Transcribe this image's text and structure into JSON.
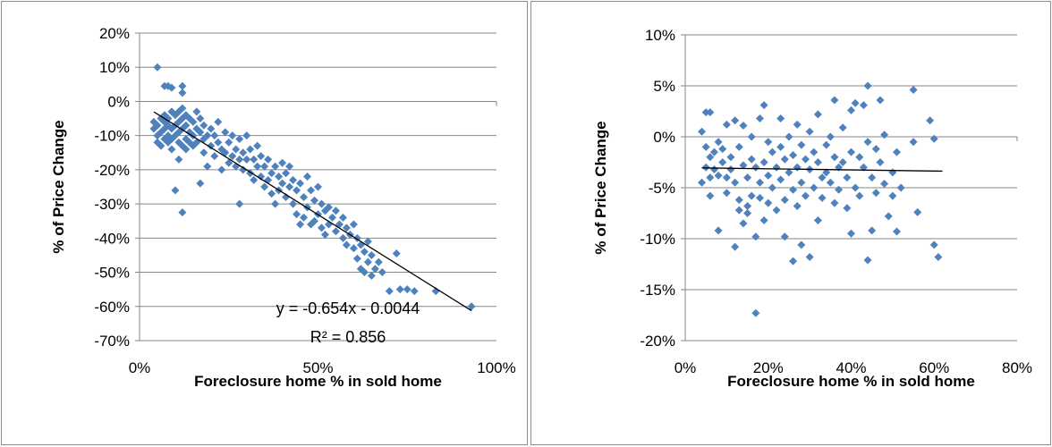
{
  "chart_data": [
    {
      "type": "scatter",
      "title": "",
      "xlabel": "Foreclosure home % in sold home",
      "ylabel": "% of Price Change",
      "xlim": [
        0,
        1.0
      ],
      "ylim": [
        -0.7,
        0.2
      ],
      "x_ticks": [
        0,
        0.5,
        1.0
      ],
      "x_tick_labels": [
        "0%",
        "50%",
        "100%"
      ],
      "y_ticks": [
        0.2,
        0.1,
        0,
        -0.1,
        -0.2,
        -0.3,
        -0.4,
        -0.5,
        -0.6,
        -0.7
      ],
      "y_tick_labels": [
        "20%",
        "10%",
        "0%",
        "-10%",
        "-20%",
        "-30%",
        "-40%",
        "-50%",
        "-60%",
        "-70%"
      ],
      "grid": "horizontal",
      "marker_color": "#4f81bd",
      "trendline": {
        "slope": -0.654,
        "intercept": -0.0044,
        "x_range": [
          0.04,
          0.93
        ],
        "equation_label": "y = -0.654x - 0.0044",
        "r2_label": "R² = 0.856"
      },
      "points": [
        [
          0.05,
          0.1
        ],
        [
          0.07,
          0.045
        ],
        [
          0.08,
          0.045
        ],
        [
          0.09,
          0.04
        ],
        [
          0.12,
          0.045
        ],
        [
          0.12,
          0.025
        ],
        [
          0.04,
          -0.06
        ],
        [
          0.04,
          -0.08
        ],
        [
          0.05,
          -0.07
        ],
        [
          0.05,
          -0.1
        ],
        [
          0.05,
          -0.12
        ],
        [
          0.06,
          -0.05
        ],
        [
          0.06,
          -0.09
        ],
        [
          0.06,
          -0.13
        ],
        [
          0.07,
          -0.06
        ],
        [
          0.07,
          -0.08
        ],
        [
          0.07,
          -0.11
        ],
        [
          0.07,
          -0.04
        ],
        [
          0.08,
          -0.07
        ],
        [
          0.08,
          -0.1
        ],
        [
          0.08,
          -0.12
        ],
        [
          0.08,
          -0.05
        ],
        [
          0.09,
          -0.03
        ],
        [
          0.09,
          -0.08
        ],
        [
          0.09,
          -0.11
        ],
        [
          0.09,
          -0.14
        ],
        [
          0.1,
          -0.04
        ],
        [
          0.1,
          -0.07
        ],
        [
          0.1,
          -0.1
        ],
        [
          0.1,
          -0.26
        ],
        [
          0.11,
          -0.03
        ],
        [
          0.11,
          -0.06
        ],
        [
          0.11,
          -0.09
        ],
        [
          0.11,
          -0.12
        ],
        [
          0.11,
          -0.17
        ],
        [
          0.12,
          -0.02
        ],
        [
          0.12,
          -0.05
        ],
        [
          0.12,
          -0.08
        ],
        [
          0.12,
          -0.13
        ],
        [
          0.12,
          -0.325
        ],
        [
          0.13,
          -0.04
        ],
        [
          0.13,
          -0.07
        ],
        [
          0.13,
          -0.11
        ],
        [
          0.13,
          -0.14
        ],
        [
          0.14,
          -0.05
        ],
        [
          0.14,
          -0.09
        ],
        [
          0.14,
          -0.12
        ],
        [
          0.15,
          -0.06
        ],
        [
          0.15,
          -0.1
        ],
        [
          0.15,
          -0.13
        ],
        [
          0.16,
          -0.03
        ],
        [
          0.16,
          -0.08
        ],
        [
          0.16,
          -0.12
        ],
        [
          0.17,
          -0.05
        ],
        [
          0.17,
          -0.09
        ],
        [
          0.17,
          -0.24
        ],
        [
          0.18,
          -0.07
        ],
        [
          0.18,
          -0.11
        ],
        [
          0.18,
          -0.15
        ],
        [
          0.19,
          -0.1
        ],
        [
          0.19,
          -0.19
        ],
        [
          0.2,
          -0.08
        ],
        [
          0.2,
          -0.13
        ],
        [
          0.21,
          -0.1
        ],
        [
          0.21,
          -0.16
        ],
        [
          0.22,
          -0.06
        ],
        [
          0.22,
          -0.12
        ],
        [
          0.23,
          -0.14
        ],
        [
          0.23,
          -0.2
        ],
        [
          0.24,
          -0.09
        ],
        [
          0.24,
          -0.15
        ],
        [
          0.25,
          -0.12
        ],
        [
          0.25,
          -0.18
        ],
        [
          0.26,
          -0.1
        ],
        [
          0.26,
          -0.16
        ],
        [
          0.27,
          -0.14
        ],
        [
          0.27,
          -0.19
        ],
        [
          0.28,
          -0.11
        ],
        [
          0.28,
          -0.17
        ],
        [
          0.28,
          -0.3
        ],
        [
          0.29,
          -0.15
        ],
        [
          0.29,
          -0.2
        ],
        [
          0.3,
          -0.1
        ],
        [
          0.3,
          -0.17
        ],
        [
          0.31,
          -0.14
        ],
        [
          0.31,
          -0.21
        ],
        [
          0.32,
          -0.17
        ],
        [
          0.32,
          -0.23
        ],
        [
          0.33,
          -0.13
        ],
        [
          0.33,
          -0.19
        ],
        [
          0.34,
          -0.16
        ],
        [
          0.34,
          -0.22
        ],
        [
          0.35,
          -0.19
        ],
        [
          0.35,
          -0.25
        ],
        [
          0.36,
          -0.17
        ],
        [
          0.36,
          -0.23
        ],
        [
          0.37,
          -0.21
        ],
        [
          0.37,
          -0.27
        ],
        [
          0.38,
          -0.19
        ],
        [
          0.38,
          -0.3
        ],
        [
          0.39,
          -0.22
        ],
        [
          0.39,
          -0.26
        ],
        [
          0.4,
          -0.18
        ],
        [
          0.4,
          -0.24
        ],
        [
          0.41,
          -0.21
        ],
        [
          0.41,
          -0.28
        ],
        [
          0.42,
          -0.19
        ],
        [
          0.42,
          -0.25
        ],
        [
          0.43,
          -0.23
        ],
        [
          0.43,
          -0.3
        ],
        [
          0.44,
          -0.26
        ],
        [
          0.44,
          -0.33
        ],
        [
          0.45,
          -0.24
        ],
        [
          0.45,
          -0.36
        ],
        [
          0.46,
          -0.28
        ],
        [
          0.46,
          -0.34
        ],
        [
          0.47,
          -0.22
        ],
        [
          0.47,
          -0.31
        ],
        [
          0.48,
          -0.26
        ],
        [
          0.48,
          -0.36
        ],
        [
          0.49,
          -0.29
        ],
        [
          0.49,
          -0.35
        ],
        [
          0.5,
          -0.25
        ],
        [
          0.5,
          -0.33
        ],
        [
          0.51,
          -0.3
        ],
        [
          0.51,
          -0.37
        ],
        [
          0.52,
          -0.32
        ],
        [
          0.52,
          -0.39
        ],
        [
          0.53,
          -0.31
        ],
        [
          0.53,
          -0.36
        ],
        [
          0.54,
          -0.34
        ],
        [
          0.55,
          -0.38
        ],
        [
          0.55,
          -0.32
        ],
        [
          0.56,
          -0.36
        ],
        [
          0.57,
          -0.34
        ],
        [
          0.57,
          -0.4
        ],
        [
          0.58,
          -0.37
        ],
        [
          0.58,
          -0.42
        ],
        [
          0.59,
          -0.39
        ],
        [
          0.6,
          -0.36
        ],
        [
          0.6,
          -0.43
        ],
        [
          0.61,
          -0.4
        ],
        [
          0.61,
          -0.46
        ],
        [
          0.62,
          -0.42
        ],
        [
          0.62,
          -0.49
        ],
        [
          0.63,
          -0.44
        ],
        [
          0.63,
          -0.5
        ],
        [
          0.64,
          -0.47
        ],
        [
          0.64,
          -0.41
        ],
        [
          0.65,
          -0.45
        ],
        [
          0.65,
          -0.51
        ],
        [
          0.66,
          -0.49
        ],
        [
          0.67,
          -0.47
        ],
        [
          0.68,
          -0.5
        ],
        [
          0.7,
          -0.555
        ],
        [
          0.72,
          -0.445
        ],
        [
          0.73,
          -0.55
        ],
        [
          0.75,
          -0.55
        ],
        [
          0.77,
          -0.555
        ],
        [
          0.83,
          -0.555
        ],
        [
          0.93,
          -0.6
        ]
      ]
    },
    {
      "type": "scatter",
      "title": "",
      "xlabel": "Foreclosure home % in sold home",
      "ylabel": "% of Price Change",
      "xlim": [
        0,
        0.8
      ],
      "ylim": [
        -0.2,
        0.1
      ],
      "x_ticks": [
        0,
        0.2,
        0.4,
        0.6,
        0.8
      ],
      "x_tick_labels": [
        "0%",
        "20%",
        "40%",
        "60%",
        "80%"
      ],
      "y_ticks": [
        0.1,
        0.05,
        0,
        -0.05,
        -0.1,
        -0.15,
        -0.2
      ],
      "y_tick_labels": [
        "10%",
        "5%",
        "0%",
        "-5%",
        "-10%",
        "-15%",
        "-20%"
      ],
      "grid": "horizontal",
      "marker_color": "#4f81bd",
      "trendline": {
        "slope": -0.0055,
        "intercept": -0.0303,
        "x_range": [
          0.04,
          0.62
        ]
      },
      "points": [
        [
          0.04,
          -0.045
        ],
        [
          0.04,
          0.005
        ],
        [
          0.05,
          -0.01
        ],
        [
          0.05,
          0.024
        ],
        [
          0.05,
          -0.03
        ],
        [
          0.06,
          0.024
        ],
        [
          0.06,
          -0.02
        ],
        [
          0.06,
          -0.04
        ],
        [
          0.06,
          -0.058
        ],
        [
          0.07,
          -0.015
        ],
        [
          0.07,
          -0.032
        ],
        [
          0.08,
          -0.005
        ],
        [
          0.08,
          -0.038
        ],
        [
          0.08,
          -0.092
        ],
        [
          0.09,
          -0.012
        ],
        [
          0.09,
          -0.025
        ],
        [
          0.1,
          0.012
        ],
        [
          0.1,
          -0.04
        ],
        [
          0.1,
          -0.055
        ],
        [
          0.11,
          -0.02
        ],
        [
          0.11,
          -0.032
        ],
        [
          0.12,
          0.016
        ],
        [
          0.12,
          -0.045
        ],
        [
          0.12,
          -0.108
        ],
        [
          0.13,
          -0.01
        ],
        [
          0.13,
          -0.062
        ],
        [
          0.13,
          -0.072
        ],
        [
          0.14,
          0.011
        ],
        [
          0.14,
          -0.028
        ],
        [
          0.14,
          -0.085
        ],
        [
          0.15,
          -0.04
        ],
        [
          0.15,
          -0.068
        ],
        [
          0.15,
          -0.075
        ],
        [
          0.16,
          0.0
        ],
        [
          0.16,
          -0.022
        ],
        [
          0.16,
          -0.058
        ],
        [
          0.17,
          -0.03
        ],
        [
          0.17,
          -0.098
        ],
        [
          0.17,
          -0.173
        ],
        [
          0.18,
          0.018
        ],
        [
          0.18,
          -0.045
        ],
        [
          0.18,
          -0.06
        ],
        [
          0.19,
          0.031
        ],
        [
          0.19,
          -0.025
        ],
        [
          0.19,
          -0.082
        ],
        [
          0.2,
          -0.005
        ],
        [
          0.2,
          -0.038
        ],
        [
          0.2,
          -0.065
        ],
        [
          0.21,
          -0.015
        ],
        [
          0.21,
          -0.05
        ],
        [
          0.22,
          -0.03
        ],
        [
          0.22,
          -0.072
        ],
        [
          0.23,
          0.018
        ],
        [
          0.23,
          -0.01
        ],
        [
          0.23,
          -0.042
        ],
        [
          0.24,
          -0.022
        ],
        [
          0.24,
          -0.062
        ],
        [
          0.24,
          -0.098
        ],
        [
          0.25,
          0.0
        ],
        [
          0.25,
          -0.035
        ],
        [
          0.26,
          -0.018
        ],
        [
          0.26,
          -0.052
        ],
        [
          0.26,
          -0.122
        ],
        [
          0.27,
          0.012
        ],
        [
          0.27,
          -0.03
        ],
        [
          0.27,
          -0.068
        ],
        [
          0.28,
          -0.008
        ],
        [
          0.28,
          -0.045
        ],
        [
          0.28,
          -0.106
        ],
        [
          0.29,
          -0.022
        ],
        [
          0.29,
          -0.058
        ],
        [
          0.3,
          0.005
        ],
        [
          0.3,
          -0.032
        ],
        [
          0.3,
          -0.118
        ],
        [
          0.31,
          -0.015
        ],
        [
          0.31,
          -0.05
        ],
        [
          0.32,
          0.022
        ],
        [
          0.32,
          -0.025
        ],
        [
          0.32,
          -0.082
        ],
        [
          0.33,
          -0.04
        ],
        [
          0.33,
          -0.06
        ],
        [
          0.34,
          -0.008
        ],
        [
          0.34,
          -0.035
        ],
        [
          0.35,
          0.0
        ],
        [
          0.35,
          -0.045
        ],
        [
          0.36,
          0.036
        ],
        [
          0.36,
          -0.02
        ],
        [
          0.36,
          -0.065
        ],
        [
          0.37,
          -0.03
        ],
        [
          0.37,
          -0.052
        ],
        [
          0.38,
          0.009
        ],
        [
          0.38,
          -0.025
        ],
        [
          0.39,
          -0.04
        ],
        [
          0.39,
          -0.07
        ],
        [
          0.4,
          0.026
        ],
        [
          0.4,
          -0.015
        ],
        [
          0.4,
          -0.095
        ],
        [
          0.41,
          0.033
        ],
        [
          0.41,
          -0.05
        ],
        [
          0.42,
          -0.02
        ],
        [
          0.42,
          -0.058
        ],
        [
          0.43,
          0.031
        ],
        [
          0.43,
          -0.03
        ],
        [
          0.44,
          0.05
        ],
        [
          0.44,
          -0.005
        ],
        [
          0.44,
          -0.121
        ],
        [
          0.45,
          -0.04
        ],
        [
          0.45,
          -0.092
        ],
        [
          0.46,
          -0.012
        ],
        [
          0.46,
          -0.055
        ],
        [
          0.47,
          0.036
        ],
        [
          0.47,
          -0.025
        ],
        [
          0.48,
          0.002
        ],
        [
          0.48,
          -0.046
        ],
        [
          0.49,
          -0.078
        ],
        [
          0.5,
          -0.035
        ],
        [
          0.5,
          -0.058
        ],
        [
          0.51,
          -0.015
        ],
        [
          0.51,
          -0.093
        ],
        [
          0.52,
          -0.05
        ],
        [
          0.55,
          0.046
        ],
        [
          0.55,
          -0.005
        ],
        [
          0.56,
          -0.074
        ],
        [
          0.59,
          0.016
        ],
        [
          0.6,
          -0.002
        ],
        [
          0.6,
          -0.106
        ],
        [
          0.61,
          -0.118
        ]
      ]
    }
  ]
}
